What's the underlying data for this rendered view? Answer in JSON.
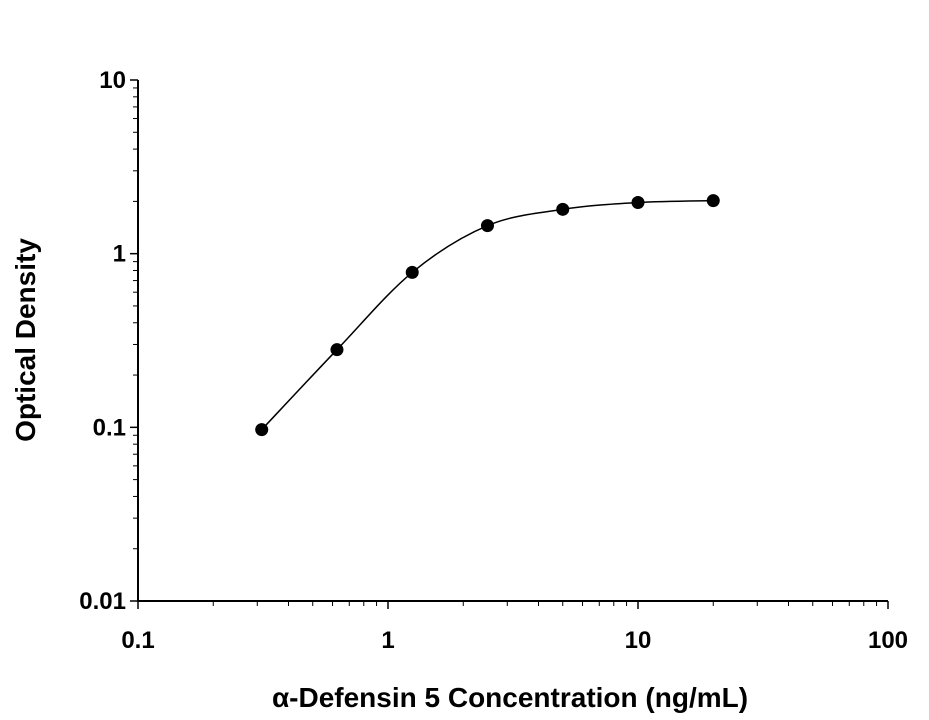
{
  "chart_data": {
    "type": "scatter",
    "title": "",
    "xlabel": "α-Defensin 5 Concentration (ng/mL)",
    "ylabel": "Optical Density",
    "xscale": "log",
    "yscale": "log",
    "xlim": [
      0.1,
      100
    ],
    "ylim": [
      0.01,
      10
    ],
    "x_ticks": [
      "0.1",
      "1",
      "10",
      "100"
    ],
    "y_ticks": [
      "0.01",
      "0.1",
      "1",
      "10"
    ],
    "grid": false,
    "legend": "none",
    "series": [
      {
        "x": [
          0.3125,
          0.625,
          1.25,
          2.5,
          5,
          10,
          20
        ],
        "y": [
          0.097,
          0.28,
          0.78,
          1.45,
          1.8,
          1.97,
          2.02
        ],
        "marker": "filled-circle",
        "color": "#000000",
        "fit_curve": true
      }
    ]
  }
}
